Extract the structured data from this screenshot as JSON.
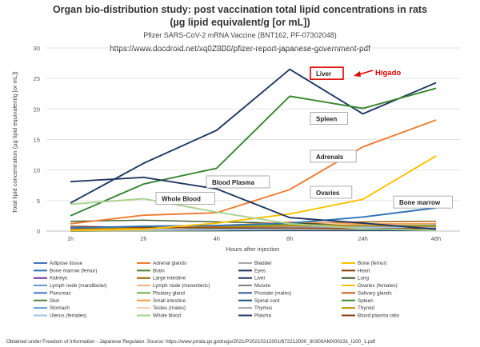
{
  "chart_data": {
    "type": "line",
    "title": "Organ bio-distribution study: post vaccination total lipid concentrations in rats",
    "title_line2": "(µg lipid equivalent/g [or mL])",
    "subtitle": "Pfizer SARS-CoV-2 mRNA Vaccine (BNT162, PF-07302048)",
    "url": "https://www.docdroid.net/xq0Z8B0/pfizer-report-japanese-government-pdf",
    "xlabel": "Hours after injection",
    "ylabel": "Total lipid concentration (µg lipid equivalent/g [or mL])",
    "ylim": [
      0,
      30
    ],
    "yticks": [
      "0",
      "5",
      "10",
      "15",
      "20",
      "25",
      "30"
    ],
    "categories": [
      "1h",
      "2h",
      "4h",
      "8h",
      "24h",
      "48h"
    ],
    "grid": true,
    "legend_position": "bottom",
    "series": [
      {
        "name": "Adipose tissue",
        "color": "#4472c4",
        "values": [
          0.06,
          0.1,
          0.14,
          0.22,
          0.25,
          0.23
        ]
      },
      {
        "name": "Adrenal glands",
        "color": "#ed7d31",
        "values": [
          1.2,
          2.6,
          3.0,
          6.8,
          13.8,
          18.2
        ]
      },
      {
        "name": "Bladder",
        "color": "#a5a5a5",
        "values": [
          0.1,
          0.2,
          0.2,
          0.3,
          0.2,
          0.2
        ]
      },
      {
        "name": "Bone (femur)",
        "color": "#ffc000",
        "values": [
          0.1,
          0.2,
          0.3,
          0.3,
          0.5,
          0.5
        ]
      },
      {
        "name": "Bone marrow (femur)",
        "color": "#2e75b6",
        "values": [
          0.5,
          0.8,
          0.9,
          1.3,
          2.3,
          3.8
        ]
      },
      {
        "name": "Brain",
        "color": "#548235",
        "values": [
          0.05,
          0.1,
          0.1,
          0.1,
          0.1,
          0.1
        ]
      },
      {
        "name": "Eyes",
        "color": "#203864",
        "values": [
          0.01,
          0.03,
          0.05,
          0.1,
          0.1,
          0.1
        ]
      },
      {
        "name": "Heart",
        "color": "#843c0c",
        "values": [
          0.3,
          0.6,
          0.5,
          0.4,
          0.3,
          0.3
        ]
      },
      {
        "name": "Kidneys",
        "color": "#7030a0",
        "values": [
          0.4,
          0.8,
          0.6,
          0.8,
          0.9,
          0.8
        ]
      },
      {
        "name": "Large intestine",
        "color": "#9c5b00",
        "values": [
          0.2,
          0.4,
          0.7,
          1.2,
          1.5,
          1.6
        ]
      },
      {
        "name": "Liver",
        "color": "#1f3864",
        "values": [
          4.6,
          11.1,
          16.5,
          26.5,
          19.2,
          24.3
        ]
      },
      {
        "name": "Lung",
        "color": "#375623",
        "values": [
          1.6,
          1.8,
          1.5,
          1.3,
          0.9,
          0.7
        ]
      },
      {
        "name": "Lymph node (mandibular)",
        "color": "#5b9bd5",
        "values": [
          0.6,
          0.6,
          0.8,
          1.0,
          0.8,
          1.0
        ]
      },
      {
        "name": "Lymph node (mesenteric)",
        "color": "#f4b183",
        "values": [
          0.2,
          0.5,
          0.6,
          0.9,
          1.1,
          1.2
        ]
      },
      {
        "name": "Muscle",
        "color": "#7f7f7f",
        "values": [
          0.05,
          0.1,
          0.1,
          0.1,
          0.1,
          0.1
        ]
      },
      {
        "name": "Ovaries (females)",
        "color": "#ffc000",
        "values": [
          0.1,
          0.3,
          1.3,
          2.8,
          5.2,
          12.3
        ]
      },
      {
        "name": "Pancreas",
        "color": "#4472c4",
        "values": [
          0.1,
          0.2,
          0.3,
          0.5,
          0.6,
          0.5
        ]
      },
      {
        "name": "Pituitary gland",
        "color": "#70ad47",
        "values": [
          0.3,
          0.6,
          0.9,
          1.0,
          0.9,
          0.9
        ]
      },
      {
        "name": "Prostate (males)",
        "color": "#2f5597",
        "values": [
          0.1,
          0.1,
          0.2,
          0.2,
          0.2,
          0.1
        ]
      },
      {
        "name": "Salivary glands",
        "color": "#c55a11",
        "values": [
          0.3,
          0.5,
          0.7,
          0.8,
          0.7,
          0.7
        ]
      },
      {
        "name": "Skin",
        "color": "#548235",
        "values": [
          0.01,
          0.02,
          0.05,
          0.1,
          0.1,
          0.1
        ]
      },
      {
        "name": "Small intestine",
        "color": "#f79646",
        "values": [
          0.2,
          0.5,
          0.9,
          1.5,
          1.2,
          1.2
        ]
      },
      {
        "name": "Spinal cord",
        "color": "#1f4e79",
        "values": [
          0.1,
          0.1,
          0.1,
          0.1,
          0.1,
          0.1
        ]
      },
      {
        "name": "Spleen",
        "color": "#38862f",
        "values": [
          2.5,
          7.7,
          10.3,
          22.1,
          20.1,
          23.4
        ]
      },
      {
        "name": "Stomach",
        "color": "#5b9bd5",
        "values": [
          0.1,
          0.2,
          0.3,
          0.3,
          0.3,
          0.3
        ]
      },
      {
        "name": "Testes (males)",
        "color": "#f8cbad",
        "values": [
          0.1,
          0.1,
          0.2,
          0.3,
          0.3,
          0.3
        ]
      },
      {
        "name": "Thymus",
        "color": "#a5a5a5",
        "values": [
          0.1,
          0.2,
          0.4,
          0.7,
          0.7,
          0.6
        ]
      },
      {
        "name": "Thyroid",
        "color": "#bf9000",
        "values": [
          0.2,
          0.5,
          0.6,
          0.9,
          0.9,
          0.8
        ]
      },
      {
        "name": "Uterus (females)",
        "color": "#9dc3e6",
        "values": [
          0.1,
          0.2,
          0.2,
          0.4,
          0.6,
          0.5
        ]
      },
      {
        "name": "Whole blood",
        "color": "#a9d18e",
        "values": [
          4.4,
          5.3,
          3.1,
          1.2,
          0.4,
          0.1
        ]
      },
      {
        "name": "Plasma",
        "color": "#203864",
        "values": [
          8.1,
          8.8,
          6.9,
          2.2,
          1.3,
          0.3
        ]
      },
      {
        "name": "Blood:plasma ratio",
        "color": "#843c0c",
        "values": [
          0.8,
          0.6,
          0.5,
          0.5,
          0.4,
          0.4
        ]
      }
    ],
    "annotations": [
      {
        "text": "Liver",
        "category": "8h",
        "y": 25.4,
        "boxed": true,
        "box_color": "#e00000"
      },
      {
        "text": "Spleen",
        "category": "8h",
        "y": 18.0,
        "boxed": true
      },
      {
        "text": "Adrenals",
        "category": "8h",
        "y": 11.8,
        "boxed": true
      },
      {
        "text": "Ovaries",
        "category": "8h",
        "y": 5.9,
        "boxed": true
      },
      {
        "text": "Bone marrow",
        "category": "24h",
        "y": 4.3,
        "boxed": true
      },
      {
        "text": "Blood Plasma",
        "category": "4h",
        "y": 7.6,
        "boxed": true
      },
      {
        "text": "Whole Blood",
        "category": "2h",
        "y": 4.9,
        "boxed": true
      }
    ],
    "callout": {
      "text": "Higado",
      "color": "#e00000"
    }
  },
  "footer": "Obtained under Freedom of Information - Japanese Regulator.  Source: https://www.pmda.go.jp/drugs/2021/P20210212001/672212000_30300AMX00231_I100_1.pdf"
}
